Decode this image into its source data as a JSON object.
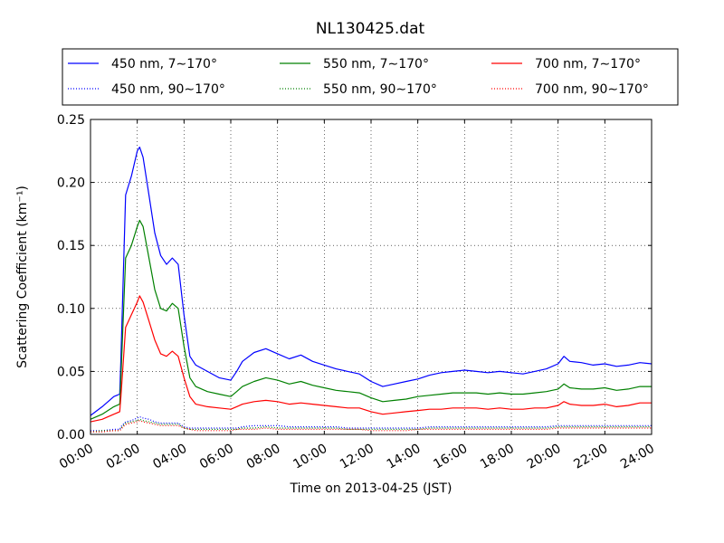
{
  "chart_data": {
    "type": "line",
    "title": "NL130425.dat",
    "xlabel": "Time on 2013-04-25 (JST)",
    "ylabel": "Scattering Coefficient (km⁻¹)",
    "xlim": [
      0,
      24
    ],
    "ylim": [
      0,
      0.25
    ],
    "x_ticks": [
      "00:00",
      "02:00",
      "04:00",
      "06:00",
      "08:00",
      "10:00",
      "12:00",
      "14:00",
      "16:00",
      "18:00",
      "20:00",
      "22:00",
      "24:00"
    ],
    "y_ticks": [
      "0.00",
      "0.05",
      "0.10",
      "0.15",
      "0.20",
      "0.25"
    ],
    "grid": true,
    "legend_position": "top (above plot), 3 columns",
    "x": [
      0,
      0.5,
      1,
      1.25,
      1.3,
      1.5,
      1.75,
      2,
      2.1,
      2.25,
      2.5,
      2.75,
      3,
      3.25,
      3.5,
      3.75,
      4,
      4.25,
      4.5,
      5,
      5.5,
      6,
      6.25,
      6.5,
      7,
      7.5,
      8,
      8.5,
      9,
      9.5,
      10,
      10.5,
      11,
      11.5,
      12,
      12.5,
      13,
      13.5,
      14,
      14.5,
      15,
      15.5,
      16,
      16.5,
      17,
      17.5,
      18,
      18.5,
      19,
      19.5,
      20,
      20.25,
      20.5,
      21,
      21.5,
      22,
      22.5,
      23,
      23.5,
      24
    ],
    "series": [
      {
        "name": "450 nm, 7∼170°",
        "color": "#0000ff",
        "style": "solid",
        "values": [
          0.015,
          0.022,
          0.03,
          0.032,
          0.06,
          0.19,
          0.205,
          0.225,
          0.228,
          0.22,
          0.19,
          0.16,
          0.142,
          0.135,
          0.14,
          0.135,
          0.095,
          0.062,
          0.055,
          0.05,
          0.045,
          0.043,
          0.05,
          0.058,
          0.065,
          0.068,
          0.064,
          0.06,
          0.063,
          0.058,
          0.055,
          0.052,
          0.05,
          0.048,
          0.042,
          0.038,
          0.04,
          0.042,
          0.044,
          0.047,
          0.049,
          0.05,
          0.051,
          0.05,
          0.049,
          0.05,
          0.049,
          0.048,
          0.05,
          0.052,
          0.056,
          0.062,
          0.058,
          0.057,
          0.055,
          0.056,
          0.054,
          0.055,
          0.057,
          0.056
        ]
      },
      {
        "name": "550 nm, 7∼170°",
        "color": "#008000",
        "style": "solid",
        "values": [
          0.012,
          0.016,
          0.022,
          0.024,
          0.045,
          0.14,
          0.15,
          0.165,
          0.17,
          0.165,
          0.14,
          0.115,
          0.1,
          0.098,
          0.104,
          0.1,
          0.07,
          0.045,
          0.038,
          0.034,
          0.032,
          0.03,
          0.034,
          0.038,
          0.042,
          0.045,
          0.043,
          0.04,
          0.042,
          0.039,
          0.037,
          0.035,
          0.034,
          0.033,
          0.029,
          0.026,
          0.027,
          0.028,
          0.03,
          0.031,
          0.032,
          0.033,
          0.033,
          0.033,
          0.032,
          0.033,
          0.032,
          0.032,
          0.033,
          0.034,
          0.036,
          0.04,
          0.037,
          0.036,
          0.036,
          0.037,
          0.035,
          0.036,
          0.038,
          0.038
        ]
      },
      {
        "name": "700 nm, 7∼170°",
        "color": "#ff0000",
        "style": "solid",
        "values": [
          0.01,
          0.012,
          0.016,
          0.018,
          0.03,
          0.085,
          0.095,
          0.105,
          0.11,
          0.105,
          0.09,
          0.075,
          0.064,
          0.062,
          0.066,
          0.062,
          0.045,
          0.03,
          0.024,
          0.022,
          0.021,
          0.02,
          0.022,
          0.024,
          0.026,
          0.027,
          0.026,
          0.024,
          0.025,
          0.024,
          0.023,
          0.022,
          0.021,
          0.021,
          0.018,
          0.016,
          0.017,
          0.018,
          0.019,
          0.02,
          0.02,
          0.021,
          0.021,
          0.021,
          0.02,
          0.021,
          0.02,
          0.02,
          0.021,
          0.021,
          0.023,
          0.026,
          0.024,
          0.023,
          0.023,
          0.024,
          0.022,
          0.023,
          0.025,
          0.025
        ]
      },
      {
        "name": "450 nm, 90∼170°",
        "color": "#0000ff",
        "style": "dotted",
        "values": [
          0.003,
          0.003,
          0.004,
          0.004,
          0.006,
          0.01,
          0.011,
          0.013,
          0.014,
          0.013,
          0.012,
          0.01,
          0.009,
          0.009,
          0.009,
          0.009,
          0.006,
          0.005,
          0.005,
          0.005,
          0.005,
          0.005,
          0.005,
          0.006,
          0.007,
          0.007,
          0.007,
          0.006,
          0.006,
          0.006,
          0.006,
          0.006,
          0.005,
          0.005,
          0.005,
          0.005,
          0.005,
          0.005,
          0.005,
          0.006,
          0.006,
          0.006,
          0.006,
          0.006,
          0.006,
          0.006,
          0.006,
          0.006,
          0.006,
          0.006,
          0.007,
          0.007,
          0.007,
          0.007,
          0.007,
          0.007,
          0.007,
          0.007,
          0.007,
          0.007
        ]
      },
      {
        "name": "550 nm, 90∼170°",
        "color": "#008000",
        "style": "dotted",
        "values": [
          0.002,
          0.003,
          0.003,
          0.003,
          0.005,
          0.009,
          0.01,
          0.011,
          0.012,
          0.011,
          0.01,
          0.009,
          0.008,
          0.008,
          0.008,
          0.008,
          0.005,
          0.004,
          0.004,
          0.004,
          0.004,
          0.004,
          0.004,
          0.005,
          0.005,
          0.006,
          0.005,
          0.005,
          0.005,
          0.005,
          0.005,
          0.005,
          0.004,
          0.004,
          0.004,
          0.004,
          0.004,
          0.004,
          0.004,
          0.005,
          0.005,
          0.005,
          0.005,
          0.005,
          0.005,
          0.005,
          0.005,
          0.005,
          0.005,
          0.005,
          0.006,
          0.006,
          0.006,
          0.006,
          0.006,
          0.006,
          0.006,
          0.006,
          0.006,
          0.006
        ]
      },
      {
        "name": "700 nm, 90∼170°",
        "color": "#ff0000",
        "style": "dotted",
        "values": [
          0.002,
          0.002,
          0.003,
          0.003,
          0.004,
          0.008,
          0.009,
          0.01,
          0.011,
          0.01,
          0.009,
          0.008,
          0.007,
          0.007,
          0.007,
          0.007,
          0.005,
          0.004,
          0.003,
          0.003,
          0.003,
          0.003,
          0.004,
          0.004,
          0.004,
          0.005,
          0.004,
          0.004,
          0.004,
          0.004,
          0.004,
          0.004,
          0.004,
          0.004,
          0.003,
          0.003,
          0.003,
          0.003,
          0.004,
          0.004,
          0.004,
          0.004,
          0.004,
          0.004,
          0.004,
          0.004,
          0.004,
          0.004,
          0.004,
          0.004,
          0.005,
          0.005,
          0.005,
          0.005,
          0.005,
          0.005,
          0.005,
          0.005,
          0.005,
          0.005
        ]
      }
    ],
    "legend_order": [
      0,
      1,
      2,
      3,
      4,
      5
    ]
  }
}
